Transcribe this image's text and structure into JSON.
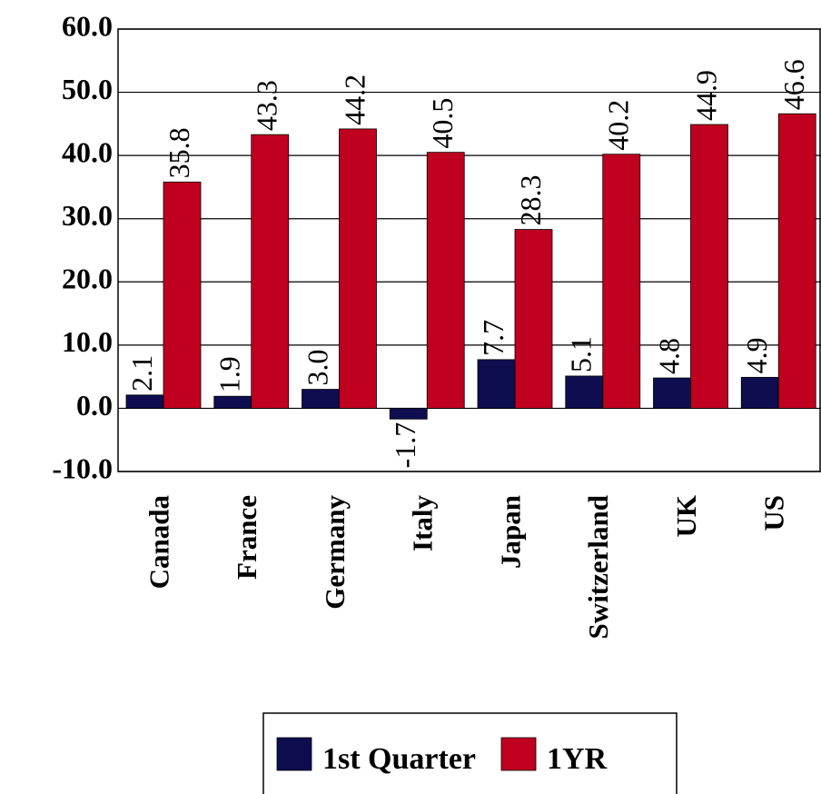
{
  "chart_data": {
    "type": "bar",
    "categories": [
      "Canada",
      "France",
      "Germany",
      "Italy",
      "Japan",
      "Switzerland",
      "UK",
      "US"
    ],
    "series": [
      {
        "name": "1st Quarter",
        "color": "#0d0d4f",
        "values": [
          2.1,
          1.9,
          3.0,
          -1.7,
          7.7,
          5.1,
          4.8,
          4.9
        ],
        "value_labels": [
          "2.1",
          "1.9",
          "3.0",
          "-1.7",
          "7.7",
          "5.1",
          "4.8",
          "4.9"
        ]
      },
      {
        "name": "1YR",
        "color": "#c0001f",
        "values": [
          35.8,
          43.3,
          44.2,
          40.5,
          28.3,
          40.2,
          44.9,
          46.6
        ]
      }
    ],
    "ylim": [
      -10,
      60
    ],
    "yticks": [
      {
        "value": -10,
        "label": "-10.0"
      },
      {
        "value": 0,
        "label": "0.0"
      },
      {
        "value": 10,
        "label": "10.0"
      },
      {
        "value": 20,
        "label": "20.0"
      },
      {
        "value": 30,
        "label": "30.0"
      },
      {
        "value": 40,
        "label": "40.0"
      },
      {
        "value": 50,
        "label": "50.0"
      },
      {
        "value": 60,
        "label": "60.0"
      }
    ],
    "grid": true,
    "legend": "bottom"
  }
}
